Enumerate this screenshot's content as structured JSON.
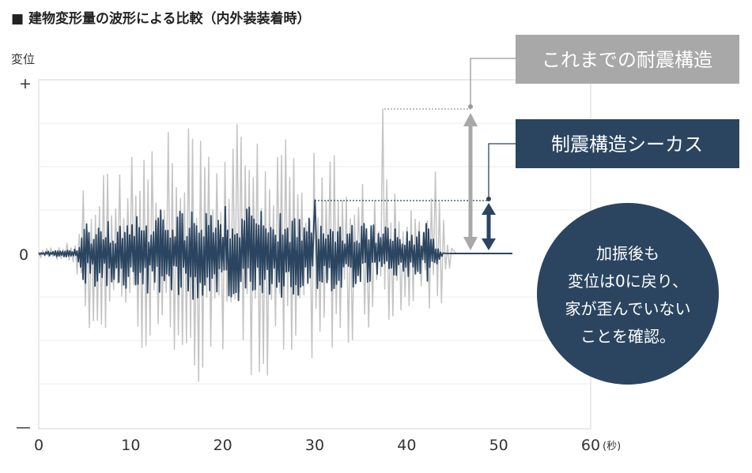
{
  "heading": "■ 建物変形量の波形による比較（内外装装着時）",
  "chart_data": {
    "type": "line",
    "title": "建物変形量の波形による比較（内外装装着時）",
    "ylabel": "変位",
    "xlabel": "",
    "x_unit": "(秒)",
    "xlim": [
      0,
      60
    ],
    "ylim": [
      -1,
      1
    ],
    "x_ticks": [
      "0",
      "10",
      "20",
      "30",
      "40",
      "50",
      "60"
    ],
    "y_tick_labels": {
      "top": "+",
      "zero": "0",
      "bottom": "—"
    },
    "grid": true,
    "series": [
      {
        "name": "これまでの耐震構造",
        "color": "#c4c4c4",
        "duration_s": 45,
        "peak": 0.84,
        "peak_time_s": 37.5,
        "residual": 0
      },
      {
        "name": "制震構造シーカス",
        "color": "#2b4560",
        "duration_s": 44,
        "peak": 0.31,
        "peak_time_s": 30,
        "residual": 0
      }
    ],
    "annotations": {
      "conventional_label": "これまでの耐震構造",
      "seismic_label": "制震構造シーカス",
      "circle_lines": [
        "加振後も",
        "変位は0に戻り、",
        "家が歪んでいない",
        "ことを確認。"
      ]
    }
  },
  "colors": {
    "conventional": "#a8a8a8",
    "seismic": "#2b4560",
    "conventional_wave": "#c4c4c4",
    "seismic_wave": "#2b4560",
    "grid": "#ebebeb",
    "frame": "#d4d4d4"
  }
}
